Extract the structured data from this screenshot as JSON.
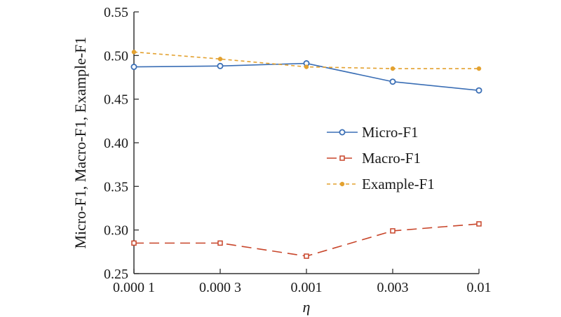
{
  "chart_data": {
    "type": "line",
    "categories": [
      "0.000 1",
      "0.000 3",
      "0.001",
      "0.003",
      "0.01"
    ],
    "xlabel": "η",
    "ylabel": "Micro-F1, Macro-F1, Example-F1",
    "ylim": [
      0.25,
      0.55
    ],
    "yticks": [
      "0.25",
      "0.30",
      "0.35",
      "0.40",
      "0.45",
      "0.50",
      "0.55"
    ],
    "grid": false,
    "legend_position": "center-right",
    "series": [
      {
        "name": "Micro-F1",
        "values": [
          0.487,
          0.488,
          0.491,
          0.47,
          0.46
        ],
        "color": "#3a6eb5",
        "marker": "circle",
        "dash": "solid"
      },
      {
        "name": "Macro-F1",
        "values": [
          0.285,
          0.285,
          0.27,
          0.299,
          0.307
        ],
        "color": "#c8452a",
        "marker": "square",
        "dash": "long-dash"
      },
      {
        "name": "Example-F1",
        "values": [
          0.504,
          0.496,
          0.487,
          0.485,
          0.485
        ],
        "color": "#e3a12f",
        "marker": "dot",
        "dash": "short-dash"
      }
    ]
  }
}
